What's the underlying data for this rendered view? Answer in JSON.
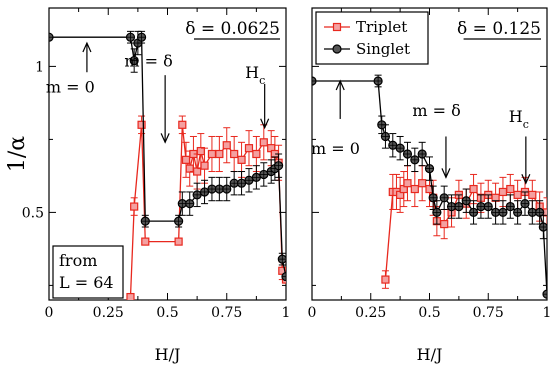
{
  "chart_data": [
    {
      "type": "line",
      "panel": "left",
      "xlabel": "H/J",
      "ylabel": "1/α",
      "xlim": [
        0,
        1
      ],
      "ylim": [
        0.2,
        1.2
      ],
      "xticks": [
        0,
        0.25,
        0.5,
        0.75,
        1
      ],
      "xtick_labels": [
        "0",
        "0.25",
        "0.5",
        "0.75",
        "1"
      ],
      "yticks": [
        0.5,
        1
      ],
      "ytick_labels": [
        "0.5",
        "1"
      ],
      "delta_label": "δ = 0.0625",
      "annotations": [
        {
          "text": "m = 0",
          "x": 0.16,
          "y": 1.0,
          "arrow": "up",
          "arrow_from": 0.98,
          "arrow_to": 1.08,
          "text_x": 0.09,
          "text_y": 0.91
        },
        {
          "text": "m = δ",
          "x": 0.49,
          "y": 0.73,
          "arrow": "down",
          "arrow_from": 0.97,
          "arrow_to": 0.74,
          "text_x": 0.42,
          "text_y": 1.0
        },
        {
          "text": "H",
          "sub": "c",
          "x": 0.91,
          "y": 0.78,
          "arrow": "down",
          "arrow_from": 0.94,
          "arrow_to": 0.79,
          "text_x": 0.87,
          "text_y": 0.96
        }
      ],
      "note_lines": [
        "from",
        "L = 64"
      ],
      "series": [
        {
          "name": "Triplet",
          "color": "#e8281e",
          "marker": "square",
          "x": [
            0.3438,
            0.3594,
            0.3906,
            0.4063,
            0.5469,
            0.5625,
            0.5781,
            0.5938,
            0.6094,
            0.625,
            0.6406,
            0.6563,
            0.6875,
            0.7188,
            0.75,
            0.7813,
            0.8125,
            0.8438,
            0.875,
            0.9063,
            0.9375,
            0.9531,
            0.9688,
            0.9844,
            1.0
          ],
          "y": [
            0.21,
            0.52,
            0.8,
            0.4,
            0.4,
            0.8,
            0.68,
            0.65,
            0.7,
            0.64,
            0.71,
            0.66,
            0.7,
            0.7,
            0.73,
            0.7,
            0.68,
            0.72,
            0.7,
            0.74,
            0.72,
            0.7,
            0.67,
            0.3,
            0.27
          ],
          "err": [
            0,
            0.03,
            0.03,
            0,
            0,
            0.03,
            0.06,
            0.06,
            0.06,
            0.06,
            0.06,
            0.06,
            0.06,
            0.06,
            0.06,
            0.06,
            0.06,
            0.06,
            0.06,
            0.06,
            0.06,
            0.06,
            0.06,
            0.03,
            0
          ]
        },
        {
          "name": "Singlet",
          "color": "#000000",
          "marker": "circle",
          "x": [
            0,
            0.3438,
            0.3594,
            0.375,
            0.3906,
            0.4063,
            0.5469,
            0.5625,
            0.5938,
            0.625,
            0.6563,
            0.6875,
            0.7188,
            0.75,
            0.7813,
            0.8125,
            0.8438,
            0.875,
            0.9063,
            0.9375,
            0.9531,
            0.9688,
            0.9844,
            1.0
          ],
          "y": [
            1.1,
            1.1,
            1.02,
            1.08,
            1.1,
            0.47,
            0.47,
            0.53,
            0.53,
            0.56,
            0.57,
            0.58,
            0.58,
            0.58,
            0.6,
            0.6,
            0.61,
            0.62,
            0.63,
            0.64,
            0.65,
            0.66,
            0.34,
            0.28
          ],
          "err": [
            0,
            0.02,
            0.04,
            0.04,
            0.02,
            0.02,
            0.02,
            0.04,
            0.04,
            0.04,
            0.04,
            0.04,
            0.04,
            0.04,
            0.04,
            0.04,
            0.04,
            0.04,
            0.04,
            0.04,
            0.04,
            0.04,
            0.02,
            0
          ]
        }
      ]
    },
    {
      "type": "line",
      "panel": "right",
      "xlabel": "H/J",
      "ylabel": "",
      "xlim": [
        0,
        1
      ],
      "ylim": [
        0.2,
        1.2
      ],
      "xticks": [
        0,
        0.25,
        0.5,
        0.75,
        1
      ],
      "xtick_labels": [
        "0",
        "0.25",
        "0.5",
        "0.75",
        "1"
      ],
      "yticks": [
        0.5,
        1
      ],
      "ytick_labels": [
        "",
        ""
      ],
      "delta_label": "δ = 0.125",
      "legend": {
        "placement": "top-left",
        "entries": [
          "Triplet",
          "Singlet"
        ]
      },
      "annotations": [
        {
          "text": "m = 0",
          "x": 0.12,
          "y": 0.86,
          "arrow": "up",
          "arrow_from": 0.82,
          "arrow_to": 0.95,
          "text_x": 0.1,
          "text_y": 0.7
        },
        {
          "text": "m = δ",
          "x": 0.57,
          "y": 0.61,
          "arrow": "down",
          "arrow_from": 0.76,
          "arrow_to": 0.62,
          "text_x": 0.53,
          "text_y": 0.83
        },
        {
          "text": "H",
          "sub": "c",
          "x": 0.91,
          "y": 0.59,
          "arrow": "down",
          "arrow_from": 0.76,
          "arrow_to": 0.6,
          "text_x": 0.88,
          "text_y": 0.81
        }
      ],
      "series": [
        {
          "name": "Triplet",
          "color": "#e8281e",
          "marker": "square",
          "x": [
            0.3125,
            0.3438,
            0.3594,
            0.375,
            0.3906,
            0.4063,
            0.4375,
            0.4688,
            0.5,
            0.5156,
            0.5313,
            0.5625,
            0.5938,
            0.625,
            0.6563,
            0.6875,
            0.7188,
            0.75,
            0.7813,
            0.8125,
            0.8438,
            0.875,
            0.9063,
            0.9375,
            0.9688,
            1.0
          ],
          "y": [
            0.27,
            0.57,
            0.57,
            0.56,
            0.58,
            0.6,
            0.58,
            0.6,
            0.58,
            0.55,
            0.47,
            0.46,
            0.5,
            0.56,
            0.53,
            0.58,
            0.55,
            0.56,
            0.55,
            0.57,
            0.58,
            0.56,
            0.57,
            0.56,
            0.52,
            0.5
          ],
          "err": [
            0.03,
            0.06,
            0.06,
            0.06,
            0.06,
            0.06,
            0.06,
            0.06,
            0.06,
            0.06,
            0.05,
            0.05,
            0.05,
            0.05,
            0.05,
            0.05,
            0.05,
            0.05,
            0.05,
            0.05,
            0.05,
            0.05,
            0.05,
            0.05,
            0.05,
            0.05
          ]
        },
        {
          "name": "Singlet",
          "color": "#000000",
          "marker": "circle",
          "x": [
            0,
            0.2813,
            0.2969,
            0.3125,
            0.3438,
            0.375,
            0.4063,
            0.4375,
            0.4688,
            0.5,
            0.5156,
            0.5313,
            0.5625,
            0.5938,
            0.625,
            0.6563,
            0.6875,
            0.7188,
            0.75,
            0.7813,
            0.8125,
            0.8438,
            0.875,
            0.9063,
            0.9375,
            0.9688,
            0.9844,
            1.0
          ],
          "y": [
            0.95,
            0.95,
            0.8,
            0.76,
            0.73,
            0.72,
            0.7,
            0.68,
            0.7,
            0.65,
            0.55,
            0.5,
            0.55,
            0.52,
            0.52,
            0.54,
            0.5,
            0.52,
            0.52,
            0.5,
            0.5,
            0.52,
            0.5,
            0.53,
            0.5,
            0.5,
            0.45,
            0.22
          ],
          "err": [
            0,
            0.02,
            0.03,
            0.04,
            0.04,
            0.04,
            0.04,
            0.04,
            0.04,
            0.04,
            0.04,
            0.04,
            0.04,
            0.04,
            0.04,
            0.04,
            0.04,
            0.04,
            0.04,
            0.04,
            0.04,
            0.04,
            0.04,
            0.04,
            0.04,
            0.04,
            0.04,
            0
          ]
        }
      ]
    }
  ]
}
